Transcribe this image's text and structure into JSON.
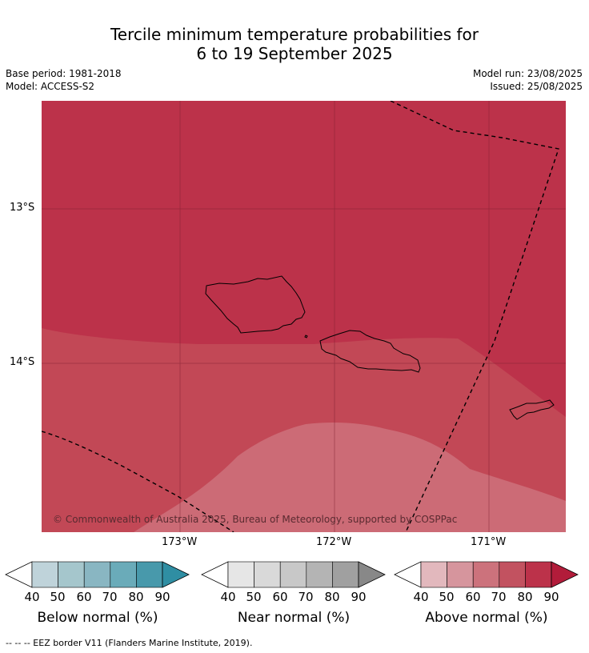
{
  "title_line1": "Tercile minimum temperature probabilities for",
  "title_line2": "6 to 19 September 2025",
  "base_period": "Base period: 1981-2018",
  "model": "Model: ACCESS-S2",
  "model_run": "Model run: 23/08/2025",
  "issued": "Issued: 25/08/2025",
  "lat_labels": [
    "13°S",
    "14°S"
  ],
  "lon_labels": [
    "173°W",
    "172°W",
    "171°W"
  ],
  "copyright": "© Commonwealth of Australia 2025, Bureau of Meteorology, supported by COSPPac",
  "colorbars": [
    {
      "label": "Below normal (%)",
      "ticks": [
        "40",
        "50",
        "60",
        "70",
        "80",
        "90"
      ],
      "colors": [
        "#ffffff",
        "#bfd3da",
        "#a5c6cc",
        "#89b6c2",
        "#6aabb9",
        "#4899ab",
        "#2f8ea3"
      ]
    },
    {
      "label": "Near normal (%)",
      "ticks": [
        "40",
        "50",
        "60",
        "70",
        "80",
        "90"
      ],
      "colors": [
        "#ffffff",
        "#e6e6e6",
        "#d9d9d9",
        "#c8c8c8",
        "#b4b4b4",
        "#a0a0a0",
        "#888888"
      ]
    },
    {
      "label": "Above normal (%)",
      "ticks": [
        "40",
        "50",
        "60",
        "70",
        "80",
        "90"
      ],
      "colors": [
        "#ffffff",
        "#e2b8bd",
        "#d6959d",
        "#cc727c",
        "#c25260",
        "#bc324a",
        "#b21c3a"
      ]
    }
  ],
  "footer": "--  --  -- EEZ border V11 (Flanders Marine Institute, 2019)."
}
